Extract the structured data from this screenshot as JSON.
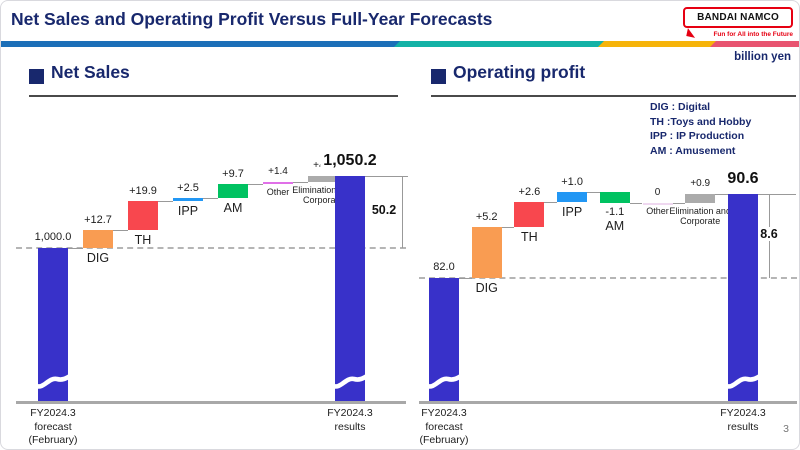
{
  "header": {
    "title": "Net Sales and Operating Profit Versus Full-Year Forecasts",
    "logo": {
      "name": "BANDAI NAMCO",
      "tagline": "Fun for All into the Future",
      "brand_color": "#e60012"
    },
    "unit_label": "billion yen",
    "accent_colors": [
      "#1c6fb8",
      "#14b2a6",
      "#f6b40a",
      "#e85470"
    ]
  },
  "legend": {
    "lines": [
      "DIG : Digital",
      "TH :Toys and Hobby",
      "IPP : IP Production",
      "AM : Amusement"
    ]
  },
  "colors": {
    "title_navy": "#18286d",
    "main_bar": "#3831c9"
  },
  "page_number": "3",
  "chart_data": [
    {
      "type": "bar",
      "variant": "waterfall",
      "title": "Net Sales",
      "unit": "billion yen",
      "start": {
        "label": "FY2024.3\nforecast\n(February)",
        "value": 1000.0,
        "display": "1,000.0"
      },
      "end": {
        "label": "FY2024.3\nresults",
        "value": 1050.2,
        "display": "1,050.2"
      },
      "delta_label": "50.2",
      "steps": [
        {
          "name": "DIG",
          "value": 12.7,
          "display": "+12.7",
          "color": "#f99c52",
          "small": false
        },
        {
          "name": "TH",
          "value": 19.9,
          "display": "+19.9",
          "color": "#f8474e",
          "small": false
        },
        {
          "name": "IPP",
          "value": 2.5,
          "display": "+2.5",
          "color": "#2297f4",
          "small": false
        },
        {
          "name": "AM",
          "value": 9.7,
          "display": "+9.7",
          "color": "#00c261",
          "small": false
        },
        {
          "name": "Other",
          "value": 1.4,
          "display": "+1.4",
          "color": "#e070e8",
          "small": true
        },
        {
          "name": "Elimination and Corporate",
          "value": 4.0,
          "display": "+4.0",
          "color": "#ababab",
          "small": true
        }
      ]
    },
    {
      "type": "bar",
      "variant": "waterfall",
      "title": "Operating profit",
      "unit": "billion yen",
      "start": {
        "label": "FY2024.3\nforecast\n(February)",
        "value": 82.0,
        "display": "82.0"
      },
      "end": {
        "label": "FY2024.3\nresults",
        "value": 90.6,
        "display": "90.6"
      },
      "delta_label": "8.6",
      "steps": [
        {
          "name": "DIG",
          "value": 5.2,
          "display": "+5.2",
          "color": "#f99c52",
          "small": false
        },
        {
          "name": "TH",
          "value": 2.6,
          "display": "+2.6",
          "color": "#f8474e",
          "small": false
        },
        {
          "name": "IPP",
          "value": 1.0,
          "display": "+1.0",
          "color": "#2297f4",
          "small": false
        },
        {
          "name": "AM",
          "value": -1.1,
          "display": "-1.1",
          "color": "#00c261",
          "small": false
        },
        {
          "name": "Other",
          "value": 0,
          "display": "0",
          "color": "#efd8f0",
          "small": true
        },
        {
          "name": "Elimination and Corporate",
          "value": 0.9,
          "display": "+0.9",
          "color": "#ababab",
          "small": true
        }
      ]
    }
  ]
}
